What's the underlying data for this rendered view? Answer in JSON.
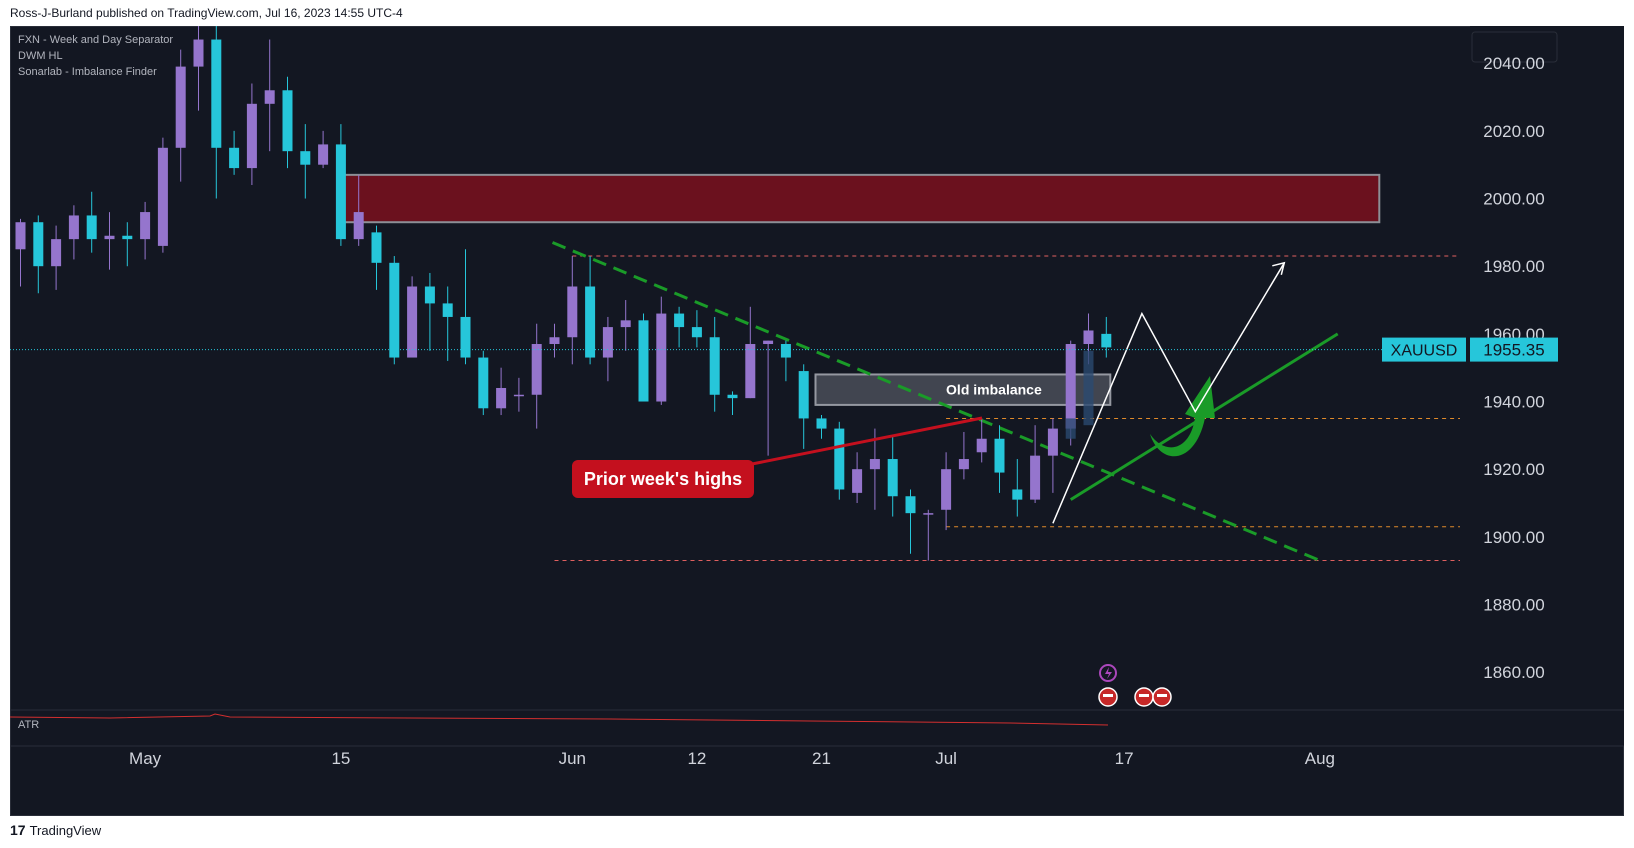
{
  "header": {
    "published_text": "Ross-J-Burland published on TradingView.com, Jul 16, 2023 14:55 UTC-4"
  },
  "indicators": [
    "FXN - Week and Day Separator",
    "DWM HL",
    "Sonarlab - Imbalance Finder"
  ],
  "atr_label": "ATR",
  "footer": {
    "brand": "TradingView"
  },
  "colors": {
    "bg": "#131722",
    "bull": "#9575cd",
    "bear": "#26c6da",
    "imbalance": "#6b111e",
    "green": "#1a9b28",
    "red_label": "#c4101e"
  },
  "chart_data": {
    "type": "candlestick",
    "symbol": "XAUUSD",
    "last_price": "1955.35",
    "ylim": [
      1850,
      2051
    ],
    "y_ticks": [
      "2040.00",
      "2020.00",
      "2000.00",
      "1980.00",
      "1960.00",
      "1940.00",
      "1920.00",
      "1900.00",
      "1880.00",
      "1860.00"
    ],
    "x_ticks": [
      {
        "label": "May",
        "bar": 7
      },
      {
        "label": "15",
        "bar": 18
      },
      {
        "label": "Jun",
        "bar": 31
      },
      {
        "label": "12",
        "bar": 38
      },
      {
        "label": "21",
        "bar": 45
      },
      {
        "label": "Jul",
        "bar": 52
      },
      {
        "label": "17",
        "bar": 62
      },
      {
        "label": "Aug",
        "bar": 73
      }
    ],
    "ohlc": [
      [
        1985,
        1993,
        1974,
        1994
      ],
      [
        1993,
        1980,
        1972,
        1995
      ],
      [
        1980,
        1988,
        1973,
        1992
      ],
      [
        1988,
        1995,
        1982,
        1998
      ],
      [
        1995,
        1988,
        1984,
        2002
      ],
      [
        1988,
        1989,
        1979,
        1996
      ],
      [
        1989,
        1988,
        1980,
        1993
      ],
      [
        1988,
        1996,
        1982,
        1999
      ],
      [
        1986,
        2015,
        1984,
        2018
      ],
      [
        2015,
        2039,
        2005,
        2044
      ],
      [
        2039,
        2047,
        2026,
        2051
      ],
      [
        2047,
        2015,
        2000,
        2052
      ],
      [
        2015,
        2009,
        2007,
        2020
      ],
      [
        2009,
        2028,
        2004,
        2034
      ],
      [
        2028,
        2032,
        2014,
        2047
      ],
      [
        2032,
        2014,
        2009,
        2036
      ],
      [
        2014,
        2010,
        2000,
        2022
      ],
      [
        2010,
        2016,
        2009,
        2020
      ],
      [
        2016,
        1988,
        1986,
        2022
      ],
      [
        1988,
        1996,
        1986,
        2007
      ],
      [
        1990,
        1981,
        1973,
        1992
      ],
      [
        1981,
        1953,
        1951,
        1983
      ],
      [
        1953,
        1974,
        1954,
        1977
      ],
      [
        1974,
        1969,
        1955,
        1978
      ],
      [
        1969,
        1965,
        1952,
        1974
      ],
      [
        1965,
        1953,
        1951,
        1985
      ],
      [
        1953,
        1938,
        1936,
        1955
      ],
      [
        1938,
        1944,
        1936,
        1950
      ],
      [
        1942,
        1942,
        1937,
        1947
      ],
      [
        1942,
        1957,
        1932,
        1963
      ],
      [
        1957,
        1959,
        1953,
        1963
      ],
      [
        1959,
        1974,
        1951,
        1983
      ],
      [
        1974,
        1953,
        1951,
        1983
      ],
      [
        1953,
        1962,
        1946,
        1965
      ],
      [
        1962,
        1964,
        1955,
        1970
      ],
      [
        1964,
        1940,
        1940,
        1966
      ],
      [
        1940,
        1966,
        1939,
        1971
      ],
      [
        1966,
        1962,
        1956,
        1968
      ],
      [
        1962,
        1959,
        1956,
        1967
      ],
      [
        1959,
        1942,
        1937,
        1965
      ],
      [
        1942,
        1941,
        1936,
        1943
      ],
      [
        1941,
        1957,
        1941,
        1968
      ],
      [
        1957,
        1958,
        1924,
        1958
      ],
      [
        1957,
        1953,
        1946,
        1958
      ],
      [
        1949,
        1935,
        1926,
        1951
      ],
      [
        1935,
        1932,
        1929,
        1936
      ],
      [
        1932,
        1914,
        1911,
        1934
      ],
      [
        1913,
        1920,
        1910,
        1925
      ],
      [
        1920,
        1923,
        1908,
        1932
      ],
      [
        1923,
        1912,
        1906,
        1930
      ],
      [
        1912,
        1907,
        1895,
        1914
      ],
      [
        1907,
        1907,
        1893,
        1908
      ],
      [
        1908,
        1920,
        1902,
        1925
      ],
      [
        1920,
        1923,
        1917,
        1931
      ],
      [
        1925,
        1929,
        1922,
        1935
      ],
      [
        1929,
        1919,
        1913,
        1933
      ],
      [
        1914,
        1911,
        1906,
        1923
      ],
      [
        1911,
        1924,
        1910,
        1933
      ],
      [
        1924,
        1932,
        1913,
        1935
      ],
      [
        1932,
        1957,
        1927,
        1958
      ],
      [
        1957,
        1961,
        1951,
        1966
      ],
      [
        1960,
        1956,
        1953,
        1965
      ]
    ],
    "levels": [
      {
        "name": "red-dashed-high",
        "value": 1983,
        "color": "#e06060"
      },
      {
        "name": "orange-dashed",
        "value": 1935,
        "color": "#e08a2a"
      },
      {
        "name": "orange-dashed-low",
        "value": 1903,
        "color": "#e08a2a"
      },
      {
        "name": "red-dashed-low",
        "value": 1893,
        "color": "#e06060"
      }
    ],
    "annotations": {
      "imbalance_top": {
        "bar_start": 18,
        "bar_end": 76,
        "top": 2007,
        "bottom": 1993
      },
      "old_imbalance": {
        "label": "Old imbalance",
        "bar_start": 45,
        "bar_end": 61,
        "top": 1948,
        "bottom": 1939
      },
      "prior_week_highs": {
        "label": "Prior week's highs"
      },
      "downtrend": {
        "from": [
          30,
          1987
        ],
        "to": [
          73,
          1893
        ]
      },
      "uptrend": {
        "from": [
          59,
          1911
        ],
        "to": [
          74,
          1960
        ]
      },
      "projection": [
        [
          58,
          1904
        ],
        [
          63,
          1966
        ],
        [
          66,
          1937
        ],
        [
          71,
          1981
        ]
      ]
    }
  }
}
